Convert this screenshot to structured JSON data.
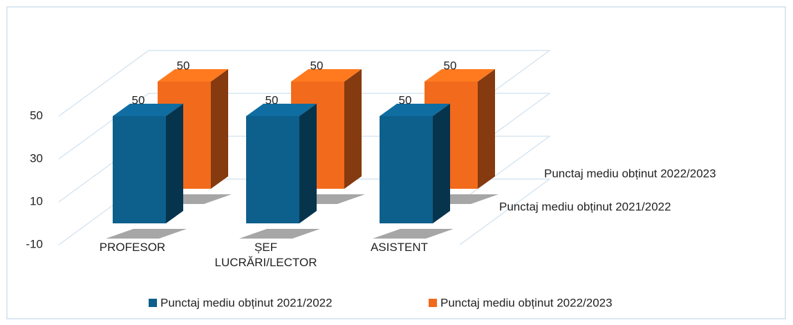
{
  "chart_data": {
    "type": "bar",
    "categories": [
      "PROFESOR",
      "ȘEF LUCRĂRI/LECTOR",
      "ASISTENT"
    ],
    "series": [
      {
        "name": "Punctaj mediu obținut 2021/2022",
        "color": "#0d5f8c",
        "values": [
          50,
          50,
          50
        ]
      },
      {
        "name": "Punctaj mediu obținut 2022/2023",
        "color": "#f26a1b",
        "values": [
          50,
          50,
          50
        ]
      }
    ],
    "ylim": [
      -10,
      60
    ],
    "yticks": [
      -10,
      10,
      30,
      50
    ],
    "grid": true
  }
}
